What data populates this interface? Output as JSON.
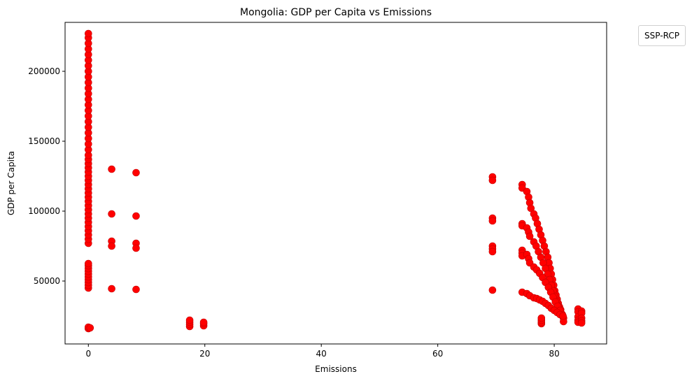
{
  "chart_data": {
    "type": "scatter",
    "title": "Mongolia: GDP per Capita vs Emissions",
    "xlabel": "Emissions",
    "ylabel": "GDP per Capita",
    "legend_title": "SSP-RCP",
    "legend_placement": "outside top-right",
    "grid": false,
    "marker_color": "#ff0000",
    "xlim": [
      -4,
      89
    ],
    "ylim": [
      5000,
      235000
    ],
    "xticks": [
      0,
      20,
      40,
      60,
      80
    ],
    "yticks": [
      50000,
      100000,
      150000,
      200000
    ],
    "series": [
      {
        "color": "#ff0000",
        "points": [
          [
            0,
            16000
          ],
          [
            0,
            17000
          ],
          [
            0.3,
            16500
          ],
          [
            0,
            45000
          ],
          [
            0,
            47000
          ],
          [
            0,
            49000
          ],
          [
            0,
            51000
          ],
          [
            0,
            53000
          ],
          [
            0,
            55000
          ],
          [
            0,
            57000
          ],
          [
            0,
            59000
          ],
          [
            0,
            61000
          ],
          [
            0,
            62500
          ],
          [
            0,
            77000
          ],
          [
            0,
            80000
          ],
          [
            0,
            83000
          ],
          [
            0,
            86000
          ],
          [
            0,
            89000
          ],
          [
            0,
            92000
          ],
          [
            0,
            95000
          ],
          [
            0,
            98000
          ],
          [
            0,
            101000
          ],
          [
            0,
            104000
          ],
          [
            0,
            107000
          ],
          [
            0,
            110000
          ],
          [
            0,
            113000
          ],
          [
            0,
            116000
          ],
          [
            0,
            119000
          ],
          [
            0,
            122000
          ],
          [
            0,
            125000
          ],
          [
            0,
            128000
          ],
          [
            0,
            131000
          ],
          [
            0,
            134000
          ],
          [
            0,
            137000
          ],
          [
            0,
            140000
          ],
          [
            0,
            144000
          ],
          [
            0,
            148000
          ],
          [
            0,
            152000
          ],
          [
            0,
            156000
          ],
          [
            0,
            160000
          ],
          [
            0,
            164000
          ],
          [
            0,
            168000
          ],
          [
            0,
            172000
          ],
          [
            0,
            176000
          ],
          [
            0,
            180000
          ],
          [
            0,
            184000
          ],
          [
            0,
            188000
          ],
          [
            0,
            192000
          ],
          [
            0,
            196000
          ],
          [
            0,
            200000
          ],
          [
            0,
            204000
          ],
          [
            0,
            208000
          ],
          [
            0,
            212000
          ],
          [
            0,
            216000
          ],
          [
            0,
            220000
          ],
          [
            0,
            224000
          ],
          [
            0,
            227000
          ],
          [
            4,
            130000
          ],
          [
            4,
            98000
          ],
          [
            4,
            78500
          ],
          [
            4,
            75000
          ],
          [
            4,
            44500
          ],
          [
            8.2,
            127500
          ],
          [
            8.2,
            96500
          ],
          [
            8.2,
            77000
          ],
          [
            8.2,
            73500
          ],
          [
            8.2,
            44000
          ],
          [
            17.4,
            17500
          ],
          [
            17.4,
            19000
          ],
          [
            17.4,
            20500
          ],
          [
            17.4,
            22000
          ],
          [
            19.8,
            18000
          ],
          [
            19.8,
            19500
          ],
          [
            19.8,
            20500
          ],
          [
            69.4,
            124500
          ],
          [
            69.4,
            122000
          ],
          [
            69.4,
            95000
          ],
          [
            69.4,
            93000
          ],
          [
            69.4,
            75000
          ],
          [
            69.4,
            73000
          ],
          [
            69.4,
            71000
          ],
          [
            69.4,
            43500
          ],
          [
            74.5,
            119000
          ],
          [
            74.5,
            116500
          ],
          [
            74.5,
            91000
          ],
          [
            74.5,
            89500
          ],
          [
            74.5,
            72000
          ],
          [
            74.5,
            70000
          ],
          [
            74.5,
            68000
          ],
          [
            74.5,
            42000
          ],
          [
            75.3,
            114000
          ],
          [
            75.6,
            110000
          ],
          [
            75.8,
            106000
          ],
          [
            76.0,
            102000
          ],
          [
            75.3,
            88000
          ],
          [
            75.6,
            85000
          ],
          [
            75.8,
            82000
          ],
          [
            75.3,
            69000
          ],
          [
            75.6,
            66000
          ],
          [
            75.8,
            63000
          ],
          [
            75.3,
            41000
          ],
          [
            75.8,
            39500
          ],
          [
            76.5,
            98000
          ],
          [
            76.8,
            95000
          ],
          [
            77.1,
            91000
          ],
          [
            77.4,
            87000
          ],
          [
            77.7,
            83000
          ],
          [
            78.0,
            79000
          ],
          [
            78.3,
            75000
          ],
          [
            78.6,
            71000
          ],
          [
            78.9,
            67000
          ],
          [
            79.1,
            63000
          ],
          [
            79.3,
            59000
          ],
          [
            79.5,
            55000
          ],
          [
            79.7,
            51000
          ],
          [
            79.9,
            47000
          ],
          [
            80.1,
            43000
          ],
          [
            80.3,
            40000
          ],
          [
            80.5,
            37000
          ],
          [
            80.7,
            34000
          ],
          [
            80.9,
            31500
          ],
          [
            81.1,
            29500
          ],
          [
            76.5,
            78000
          ],
          [
            76.9,
            75000
          ],
          [
            77.3,
            71000
          ],
          [
            77.7,
            67000
          ],
          [
            78.1,
            63000
          ],
          [
            78.5,
            59000
          ],
          [
            78.9,
            55000
          ],
          [
            79.2,
            51000
          ],
          [
            79.5,
            47000
          ],
          [
            79.8,
            43000
          ],
          [
            80.1,
            39000
          ],
          [
            80.4,
            35500
          ],
          [
            80.7,
            32000
          ],
          [
            81.0,
            29000
          ],
          [
            81.3,
            26500
          ],
          [
            81.5,
            24500
          ],
          [
            76.5,
            60000
          ],
          [
            77.0,
            58000
          ],
          [
            77.5,
            55500
          ],
          [
            78.0,
            52500
          ],
          [
            78.5,
            49000
          ],
          [
            79.0,
            45500
          ],
          [
            79.4,
            42000
          ],
          [
            79.8,
            38500
          ],
          [
            80.2,
            35000
          ],
          [
            80.6,
            32000
          ],
          [
            81.0,
            29000
          ],
          [
            81.4,
            26000
          ],
          [
            81.6,
            23500
          ],
          [
            81.6,
            21000
          ],
          [
            76.5,
            38000
          ],
          [
            77.0,
            37500
          ],
          [
            77.5,
            36500
          ],
          [
            78.0,
            35500
          ],
          [
            78.5,
            34000
          ],
          [
            79.0,
            32500
          ],
          [
            79.5,
            30500
          ],
          [
            80.0,
            29000
          ],
          [
            80.5,
            27500
          ],
          [
            81.0,
            26000
          ],
          [
            81.5,
            25000
          ],
          [
            77.8,
            19500
          ],
          [
            77.8,
            20500
          ],
          [
            77.8,
            22000
          ],
          [
            77.8,
            23500
          ],
          [
            84.1,
            30000
          ],
          [
            84.1,
            28000
          ],
          [
            84.1,
            24500
          ],
          [
            84.1,
            22000
          ],
          [
            84.1,
            20500
          ],
          [
            84.7,
            28500
          ],
          [
            84.7,
            27000
          ],
          [
            84.7,
            23500
          ],
          [
            84.7,
            21500
          ],
          [
            84.7,
            20000
          ]
        ]
      }
    ]
  }
}
